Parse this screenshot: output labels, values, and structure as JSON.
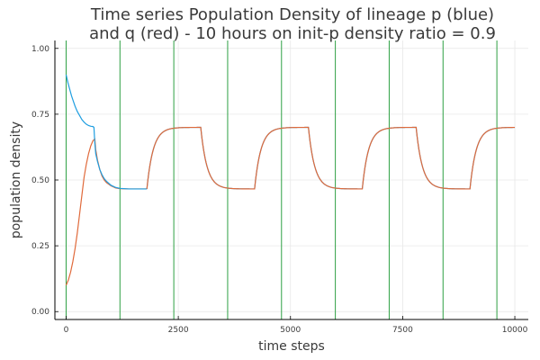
{
  "chart_data": {
    "type": "line",
    "title_line1": "Time series Population Density of lineage p (blue)",
    "title_line2": "and q (red) - 10 hours on init-p density ratio = 0.9",
    "xlabel": "time steps",
    "ylabel": "population density",
    "xlim": [
      -250,
      10300
    ],
    "ylim": [
      -0.03,
      1.03
    ],
    "xticks": [
      0,
      2500,
      5000,
      7500,
      10000
    ],
    "xtick_labels": [
      "0",
      "2500",
      "5000",
      "7500",
      "10000"
    ],
    "yticks": [
      0.0,
      0.25,
      0.5,
      0.75,
      1.0
    ],
    "ytick_labels": [
      "0.00",
      "0.25",
      "0.50",
      "0.75",
      "1.00"
    ],
    "grid": true,
    "colors": {
      "p": "#1f9ee0",
      "q": "#e06a3b",
      "vlines": "#2ea043"
    },
    "vertical_lines_x": [
      0,
      1200,
      2400,
      3600,
      4800,
      6000,
      7200,
      8400,
      9600
    ],
    "series": [
      {
        "key": "p",
        "points": [
          [
            0,
            0.9
          ],
          [
            40,
            0.87
          ],
          [
            80,
            0.845
          ],
          [
            120,
            0.82
          ],
          [
            160,
            0.8
          ],
          [
            200,
            0.78
          ],
          [
            250,
            0.76
          ],
          [
            300,
            0.745
          ],
          [
            350,
            0.73
          ],
          [
            400,
            0.72
          ],
          [
            450,
            0.712
          ],
          [
            500,
            0.707
          ],
          [
            550,
            0.704
          ],
          [
            600,
            0.703
          ],
          [
            620,
            0.7
          ],
          [
            640,
            0.64
          ],
          [
            660,
            0.6
          ],
          [
            700,
            0.57
          ],
          [
            750,
            0.54
          ],
          [
            800,
            0.52
          ],
          [
            850,
            0.505
          ],
          [
            900,
            0.495
          ],
          [
            1000,
            0.48
          ],
          [
            1100,
            0.472
          ],
          [
            1200,
            0.468
          ],
          [
            1400,
            0.466
          ],
          [
            1800,
            0.466
          ]
        ]
      },
      {
        "key": "q",
        "points": [
          [
            0,
            0.1
          ],
          [
            50,
            0.12
          ],
          [
            100,
            0.15
          ],
          [
            150,
            0.19
          ],
          [
            200,
            0.24
          ],
          [
            250,
            0.3
          ],
          [
            300,
            0.37
          ],
          [
            350,
            0.44
          ],
          [
            400,
            0.51
          ],
          [
            450,
            0.56
          ],
          [
            500,
            0.6
          ],
          [
            550,
            0.63
          ],
          [
            600,
            0.65
          ],
          [
            640,
            0.655
          ],
          [
            660,
            0.615
          ],
          [
            700,
            0.575
          ],
          [
            750,
            0.54
          ],
          [
            800,
            0.515
          ],
          [
            850,
            0.5
          ],
          [
            900,
            0.49
          ],
          [
            1000,
            0.478
          ],
          [
            1100,
            0.47
          ],
          [
            1200,
            0.467
          ],
          [
            1400,
            0.466
          ],
          [
            1800,
            0.466
          ]
        ]
      },
      {
        "key": "cycle",
        "low": 0.466,
        "high": 0.7,
        "rise_starts": [
          1800,
          4200,
          6600,
          9000
        ],
        "fall_starts": [
          3000,
          5400,
          7800
        ],
        "x_end": 10000,
        "tau": 140
      }
    ]
  }
}
